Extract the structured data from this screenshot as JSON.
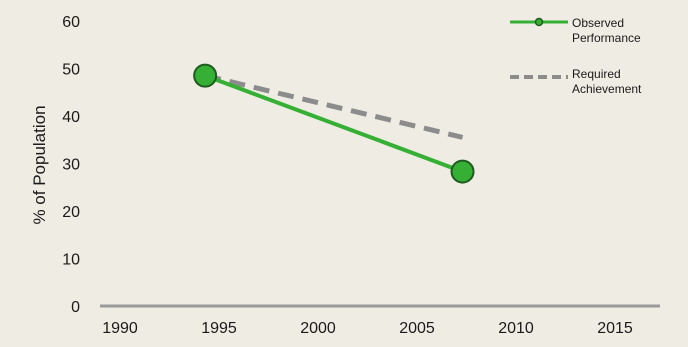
{
  "chart_data": {
    "type": "line",
    "title": "",
    "xlabel": "",
    "ylabel": "% of Population",
    "xlim": [
      1990,
      2015
    ],
    "ylim": [
      0,
      60
    ],
    "x_ticks": [
      "1990",
      "1995",
      "2000",
      "2005",
      "2010",
      "2015"
    ],
    "y_ticks": [
      "0",
      "10",
      "20",
      "30",
      "40",
      "50",
      "60"
    ],
    "grid": false,
    "legend_position": "top-right",
    "series": [
      {
        "name": "Observed Performance",
        "legend_lines": [
          "Observed",
          "Performance"
        ],
        "color": "#35b035",
        "style": "solid",
        "marker": "circle",
        "points": [
          {
            "x": 1994.3,
            "y": 48.5
          },
          {
            "x": 2007.3,
            "y": 28.3
          }
        ]
      },
      {
        "name": "Required Achievement",
        "legend_lines": [
          "Required",
          "Achievement"
        ],
        "color": "#8c8c8c",
        "style": "dashed",
        "marker": "none",
        "points": [
          {
            "x": 1994.3,
            "y": 48.5
          },
          {
            "x": 2007.3,
            "y": 35.5
          }
        ]
      }
    ]
  },
  "colors": {
    "background": "#efece3",
    "axis": "#9a9a9a",
    "marker_stroke": "#1f5a1f"
  }
}
